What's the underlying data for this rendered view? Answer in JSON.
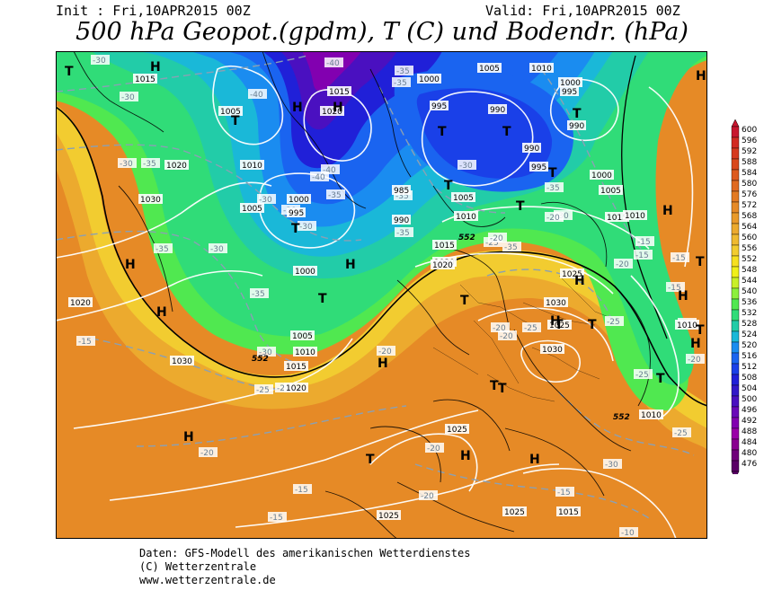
{
  "header": {
    "init": "Init : Fri,10APR2015 00Z",
    "valid": "Valid: Fri,10APR2015 00Z",
    "title": "500 hPa Geopot.(gpdm), T (C) und Bodendr. (hPa)"
  },
  "footer": {
    "line1": "Daten: GFS-Modell des amerikanischen Wetterdienstes",
    "line2": "(C) Wetterzentrale",
    "line3": "www.wetterzentrale.de"
  },
  "legend": {
    "levels": [
      "600",
      "596",
      "592",
      "588",
      "584",
      "580",
      "576",
      "572",
      "568",
      "564",
      "560",
      "556",
      "552",
      "548",
      "544",
      "540",
      "536",
      "532",
      "528",
      "524",
      "520",
      "516",
      "512",
      "508",
      "504",
      "500",
      "496",
      "492",
      "488",
      "484",
      "480",
      "476"
    ],
    "colors": [
      "#c8162e",
      "#d22a22",
      "#d6391e",
      "#d9481c",
      "#dd5a1e",
      "#e06a20",
      "#e37a22",
      "#e68a26",
      "#e99a2a",
      "#ecaa2e",
      "#efba30",
      "#f2cc30",
      "#f6e020",
      "#f0f01a",
      "#c8f028",
      "#8cf03c",
      "#50e850",
      "#30dc78",
      "#22cca8",
      "#1ab8d8",
      "#1a8cf0",
      "#1a64f0",
      "#1a40e8",
      "#2020d8",
      "#3218c8",
      "#4a10c0",
      "#6a08b8",
      "#8200b0",
      "#9a00a8",
      "#8a0090",
      "#70007a",
      "#5a0066"
    ]
  },
  "map": {
    "pressure_centers": [
      {
        "s": "T"
      },
      {
        "s": "H"
      },
      {
        "s": "T"
      },
      {
        "s": "H"
      },
      {
        "s": "H"
      },
      {
        "s": "T"
      },
      {
        "s": "T"
      },
      {
        "s": "T"
      },
      {
        "s": "T"
      },
      {
        "s": "T"
      },
      {
        "s": "T"
      },
      {
        "s": "H"
      },
      {
        "s": "T"
      },
      {
        "s": "H"
      },
      {
        "s": "H"
      },
      {
        "s": "T"
      },
      {
        "s": "H"
      },
      {
        "s": "T"
      },
      {
        "s": "H"
      },
      {
        "s": "T"
      },
      {
        "s": "T"
      },
      {
        "s": "H"
      },
      {
        "s": "T"
      },
      {
        "s": "T"
      },
      {
        "s": "H"
      },
      {
        "s": "T"
      },
      {
        "s": "H"
      },
      {
        "s": "T"
      },
      {
        "s": "T"
      },
      {
        "s": "H"
      },
      {
        "s": "H"
      },
      {
        "s": "H"
      },
      {
        "s": "T"
      },
      {
        "s": "H"
      },
      {
        "s": "H"
      }
    ],
    "pressure_labels": [
      {
        "t": "1015"
      },
      {
        "t": "1005"
      },
      {
        "t": "1020"
      },
      {
        "t": "1015"
      },
      {
        "t": "1000"
      },
      {
        "t": "995"
      },
      {
        "t": "1005"
      },
      {
        "t": "1010"
      },
      {
        "t": "1000"
      },
      {
        "t": "995"
      },
      {
        "t": "990"
      },
      {
        "t": "990"
      },
      {
        "t": "990"
      },
      {
        "t": "995"
      },
      {
        "t": "1000"
      },
      {
        "t": "1005"
      },
      {
        "t": "1020"
      },
      {
        "t": "1030"
      },
      {
        "t": "1010"
      },
      {
        "t": "1005"
      },
      {
        "t": "1000"
      },
      {
        "t": "995"
      },
      {
        "t": "985"
      },
      {
        "t": "990"
      },
      {
        "t": "1005"
      },
      {
        "t": "1010"
      },
      {
        "t": "1015"
      },
      {
        "t": "1020"
      },
      {
        "t": "1025"
      },
      {
        "t": "1015"
      },
      {
        "t": "1010"
      },
      {
        "t": "1000"
      },
      {
        "t": "1020"
      },
      {
        "t": "1005"
      },
      {
        "t": "1010"
      },
      {
        "t": "1015"
      },
      {
        "t": "1030"
      },
      {
        "t": "1020"
      },
      {
        "t": "1030"
      },
      {
        "t": "1030"
      },
      {
        "t": "1025"
      },
      {
        "t": "1020"
      },
      {
        "t": "1025"
      },
      {
        "t": "1025"
      },
      {
        "t": "1015"
      },
      {
        "t": "1010"
      },
      {
        "t": "1010"
      },
      {
        "t": "1025"
      }
    ],
    "temp_labels": [
      {
        "t": "-30"
      },
      {
        "t": "-30"
      },
      {
        "t": "-40"
      },
      {
        "t": "-40"
      },
      {
        "t": "-35"
      },
      {
        "t": "-35"
      },
      {
        "t": "-30"
      },
      {
        "t": "-35"
      },
      {
        "t": "-30"
      },
      {
        "t": "-35"
      },
      {
        "t": "-30"
      },
      {
        "t": "-30"
      },
      {
        "t": "-35"
      },
      {
        "t": "-30"
      },
      {
        "t": "-35"
      },
      {
        "t": "-40"
      },
      {
        "t": "-40"
      },
      {
        "t": "-35"
      },
      {
        "t": "-30"
      },
      {
        "t": "-35"
      },
      {
        "t": "-30"
      },
      {
        "t": "-25"
      },
      {
        "t": "-20"
      },
      {
        "t": "-15"
      },
      {
        "t": "-20"
      },
      {
        "t": "-35"
      },
      {
        "t": "-30"
      },
      {
        "t": "-25"
      },
      {
        "t": "-20"
      },
      {
        "t": "-20"
      },
      {
        "t": "-20"
      },
      {
        "t": "-25"
      },
      {
        "t": "-25"
      },
      {
        "t": "-20"
      },
      {
        "t": "-15"
      },
      {
        "t": "-20"
      },
      {
        "t": "-25"
      },
      {
        "t": "-25"
      },
      {
        "t": "-20"
      },
      {
        "t": "-20"
      },
      {
        "t": "-20"
      },
      {
        "t": "-15"
      },
      {
        "t": "-15"
      },
      {
        "t": "-10"
      },
      {
        "t": "-15"
      },
      {
        "t": "-20"
      },
      {
        "t": "-30"
      },
      {
        "t": "-20"
      },
      {
        "t": "-35"
      },
      {
        "t": "-15"
      },
      {
        "t": "-15"
      },
      {
        "t": "-15"
      }
    ],
    "geopot_labels": [
      {
        "t": "552"
      },
      {
        "t": "552"
      },
      {
        "t": "552"
      }
    ]
  }
}
